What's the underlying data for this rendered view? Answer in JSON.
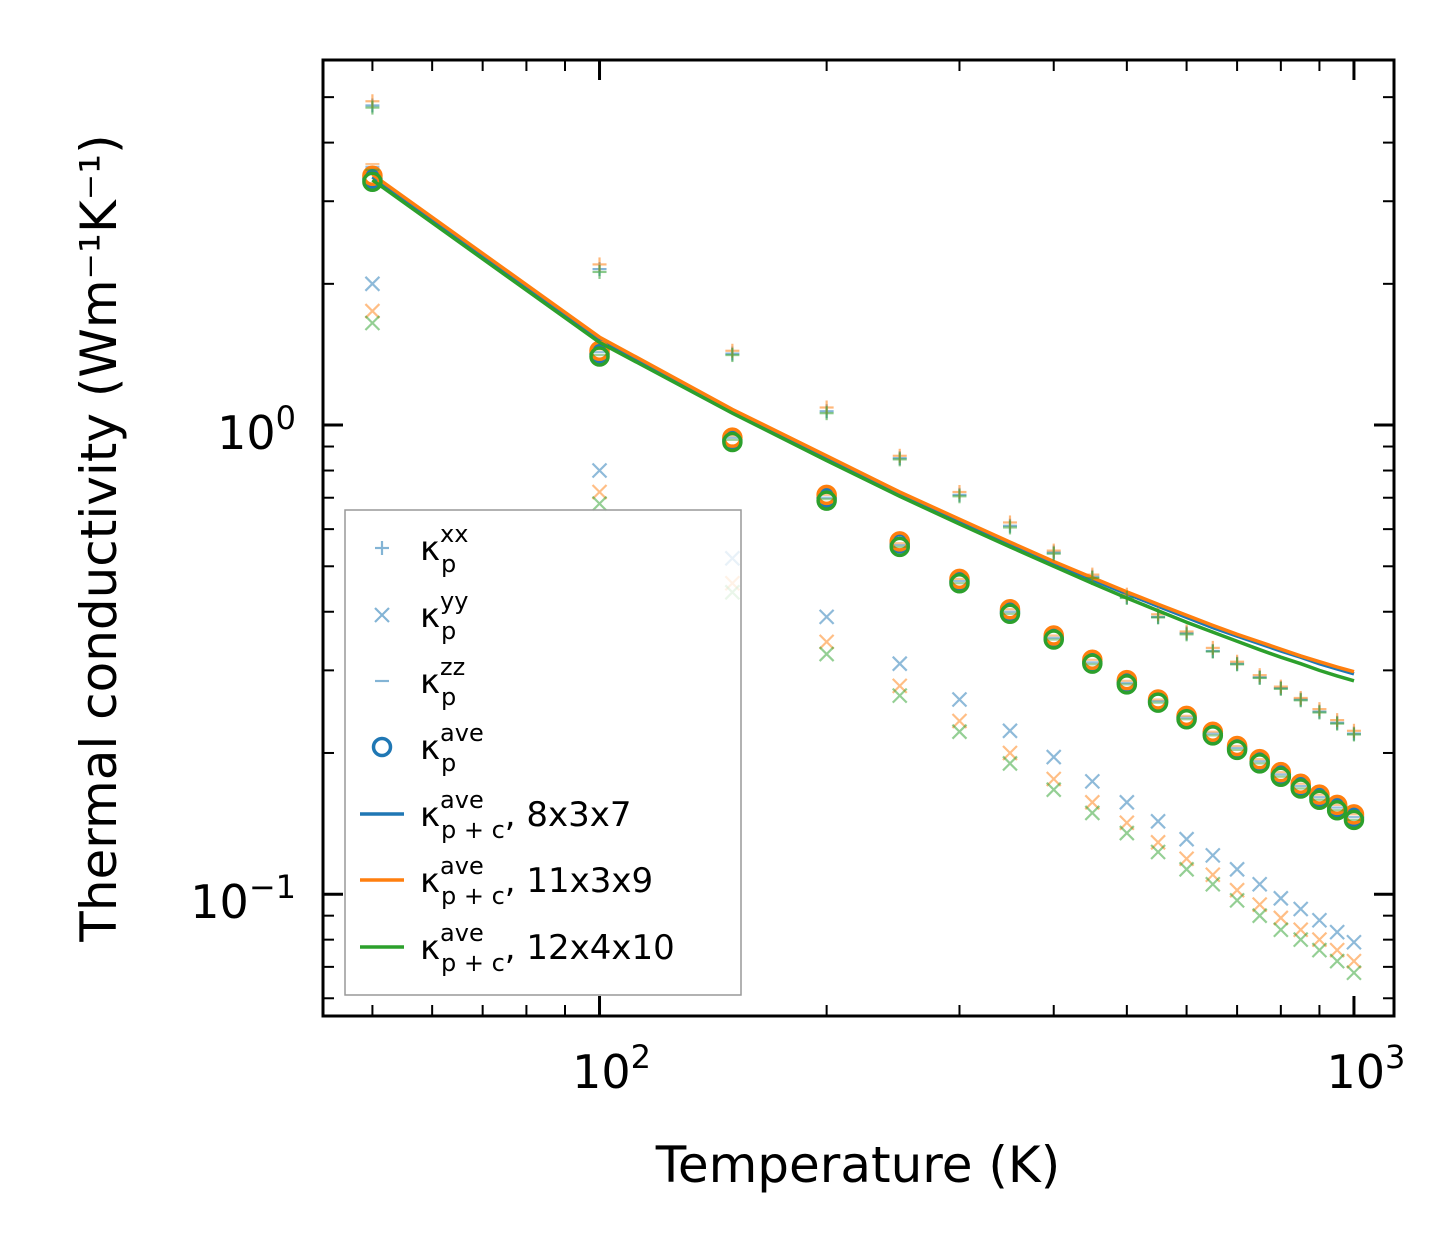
{
  "colors": {
    "s1": "#1f77b4",
    "s2": "#ff7f0e",
    "s3": "#2ca02c",
    "frame": "#000000",
    "legend_border": "#999999"
  },
  "chart_data": {
    "type": "scatter",
    "scale": {
      "x": "log",
      "y": "log"
    },
    "xlabel": "Temperature (K)",
    "ylabel": "Thermal conductivity (Wm⁻¹K⁻¹)",
    "xlim": [
      43,
      1130
    ],
    "ylim": [
      0.055,
      6.0
    ],
    "x_ticks": [
      {
        "value": 100,
        "base": "10",
        "exp": "2"
      },
      {
        "value": 1000,
        "base": "10",
        "exp": "3"
      }
    ],
    "y_ticks": [
      {
        "value": 0.1,
        "base": "10",
        "exp": "−1"
      },
      {
        "value": 1,
        "base": "10",
        "exp": "0"
      }
    ],
    "legend_position": "lower-left",
    "legend": [
      {
        "marker": "plus",
        "symbol": "κ",
        "sub": "p",
        "sup": "xx",
        "suffix": ""
      },
      {
        "marker": "cross",
        "symbol": "κ",
        "sub": "p",
        "sup": "yy",
        "suffix": ""
      },
      {
        "marker": "dash",
        "symbol": "κ",
        "sub": "p",
        "sup": "zz",
        "suffix": ""
      },
      {
        "marker": "circle",
        "symbol": "κ",
        "sub": "p",
        "sup": "ave",
        "suffix": ""
      },
      {
        "marker": "line",
        "color": "#1f77b4",
        "symbol": "κ",
        "sub": "p + c",
        "sup": "ave",
        "suffix": ", 8x3x7"
      },
      {
        "marker": "line",
        "color": "#ff7f0e",
        "symbol": "κ",
        "sub": "p + c",
        "sup": "ave",
        "suffix": ", 11x3x9"
      },
      {
        "marker": "line",
        "color": "#2ca02c",
        "symbol": "κ",
        "sub": "p + c",
        "sup": "ave",
        "suffix": ", 12x4x10"
      }
    ],
    "x": [
      50,
      100,
      150,
      200,
      250,
      300,
      350,
      400,
      450,
      500,
      550,
      600,
      650,
      700,
      750,
      800,
      850,
      900,
      950,
      1000
    ],
    "series": [
      {
        "name": "8x3x7",
        "color": "#1f77b4",
        "xx": [
          4.8,
          2.15,
          1.42,
          1.07,
          0.85,
          0.71,
          0.61,
          0.535,
          0.475,
          0.43,
          0.39,
          0.36,
          0.33,
          0.31,
          0.29,
          0.275,
          0.26,
          0.245,
          0.232,
          0.22
        ],
        "yy": [
          2.0,
          0.8,
          0.52,
          0.39,
          0.31,
          0.26,
          0.223,
          0.196,
          0.174,
          0.157,
          0.143,
          0.131,
          0.121,
          0.113,
          0.105,
          0.098,
          0.093,
          0.088,
          0.083,
          0.079
        ],
        "zz": [
          3.55,
          1.43,
          0.94,
          0.7,
          0.555,
          0.465,
          0.4,
          0.352,
          0.312,
          0.282,
          0.258,
          0.238,
          0.22,
          0.205,
          0.192,
          0.18,
          0.17,
          0.161,
          0.153,
          0.146
        ],
        "ave": [
          3.35,
          1.42,
          0.93,
          0.7,
          0.56,
          0.465,
          0.4,
          0.352,
          0.313,
          0.283,
          0.258,
          0.238,
          0.22,
          0.205,
          0.192,
          0.18,
          0.17,
          0.161,
          0.153,
          0.146
        ],
        "pc": [
          3.38,
          1.52,
          1.07,
          0.85,
          0.715,
          0.625,
          0.558,
          0.507,
          0.468,
          0.437,
          0.411,
          0.389,
          0.37,
          0.355,
          0.342,
          0.33,
          0.32,
          0.31,
          0.302,
          0.295
        ]
      },
      {
        "name": "11x3x9",
        "color": "#ff7f0e",
        "xx": [
          4.9,
          2.2,
          1.44,
          1.09,
          0.86,
          0.72,
          0.62,
          0.54,
          0.48,
          0.435,
          0.395,
          0.363,
          0.335,
          0.313,
          0.293,
          0.277,
          0.262,
          0.248,
          0.235,
          0.223
        ],
        "yy": [
          1.75,
          0.72,
          0.46,
          0.345,
          0.278,
          0.234,
          0.2,
          0.176,
          0.157,
          0.142,
          0.129,
          0.119,
          0.11,
          0.102,
          0.095,
          0.089,
          0.084,
          0.08,
          0.076,
          0.072
        ],
        "zz": [
          3.6,
          1.45,
          0.95,
          0.71,
          0.56,
          0.47,
          0.405,
          0.356,
          0.316,
          0.285,
          0.26,
          0.24,
          0.222,
          0.207,
          0.194,
          0.182,
          0.172,
          0.163,
          0.155,
          0.148
        ],
        "ave": [
          3.4,
          1.44,
          0.94,
          0.71,
          0.565,
          0.47,
          0.405,
          0.356,
          0.316,
          0.286,
          0.26,
          0.24,
          0.222,
          0.207,
          0.194,
          0.182,
          0.172,
          0.163,
          0.155,
          0.148
        ],
        "pc": [
          3.42,
          1.54,
          1.08,
          0.86,
          0.72,
          0.63,
          0.563,
          0.512,
          0.473,
          0.441,
          0.415,
          0.393,
          0.374,
          0.358,
          0.345,
          0.333,
          0.322,
          0.313,
          0.305,
          0.298
        ]
      },
      {
        "name": "12x4x10",
        "color": "#2ca02c",
        "xx": [
          4.75,
          2.12,
          1.41,
          1.06,
          0.845,
          0.705,
          0.605,
          0.532,
          0.472,
          0.428,
          0.389,
          0.358,
          0.329,
          0.309,
          0.289,
          0.274,
          0.259,
          0.244,
          0.231,
          0.219
        ],
        "yy": [
          1.65,
          0.68,
          0.44,
          0.325,
          0.265,
          0.222,
          0.19,
          0.167,
          0.149,
          0.135,
          0.123,
          0.113,
          0.105,
          0.097,
          0.09,
          0.084,
          0.08,
          0.076,
          0.072,
          0.068
        ],
        "zz": [
          3.5,
          1.41,
          0.93,
          0.695,
          0.55,
          0.46,
          0.396,
          0.349,
          0.309,
          0.28,
          0.256,
          0.236,
          0.218,
          0.203,
          0.19,
          0.178,
          0.168,
          0.159,
          0.151,
          0.144
        ],
        "ave": [
          3.3,
          1.4,
          0.92,
          0.69,
          0.55,
          0.46,
          0.396,
          0.349,
          0.31,
          0.28,
          0.256,
          0.236,
          0.218,
          0.203,
          0.19,
          0.178,
          0.168,
          0.159,
          0.151,
          0.144
        ],
        "pc": [
          3.33,
          1.5,
          1.06,
          0.84,
          0.705,
          0.615,
          0.55,
          0.5,
          0.46,
          0.428,
          0.402,
          0.38,
          0.362,
          0.346,
          0.332,
          0.32,
          0.31,
          0.3,
          0.292,
          0.285
        ]
      }
    ]
  }
}
